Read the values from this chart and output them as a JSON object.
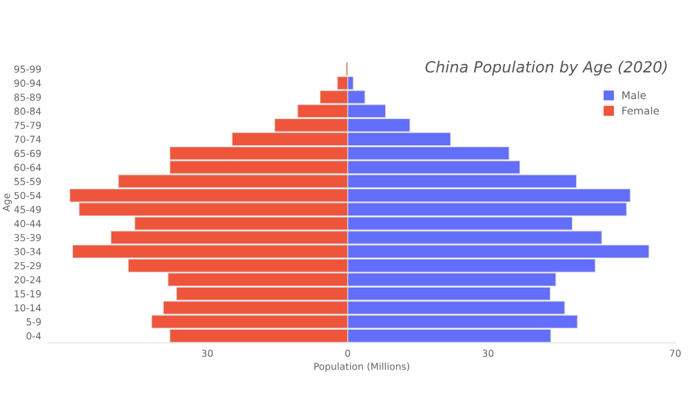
{
  "chart_data": {
    "type": "bar",
    "orientation": "horizontal",
    "title": "China Population by Age (2020)",
    "xlabel": "Population (Millions)",
    "ylabel": "Age",
    "categories": [
      "95-99",
      "90-94",
      "85-89",
      "80-84",
      "75-79",
      "70-74",
      "65-69",
      "60-64",
      "55-59",
      "50-54",
      "45-49",
      "40-44",
      "35-39",
      "30-34",
      "25-29",
      "20-24",
      "15-19",
      "10-14",
      "5-9",
      "0-4"
    ],
    "series": [
      {
        "name": "Male",
        "color": "#636efa",
        "values": [
          null,
          1.2,
          3.7,
          8.1,
          13.3,
          22,
          34.5,
          36.8,
          48.9,
          60.4,
          59.6,
          48,
          54.3,
          64.4,
          52.9,
          44.5,
          43.3,
          46.4,
          49.1,
          43.4
        ]
      },
      {
        "name": "Female",
        "color": "#ef553b",
        "values": [
          -0.3,
          -2.2,
          -5.9,
          -10.7,
          -15.6,
          -24.7,
          -38,
          -38,
          -49,
          -59.4,
          -57.4,
          -45.5,
          -50.6,
          -58.8,
          -46.9,
          -38.4,
          -36.6,
          -39.4,
          -41.9,
          -38
        ]
      }
    ],
    "xlim": [
      -64,
      70
    ],
    "stacked": true,
    "xticks": [
      {
        "value": -30,
        "label": "30"
      },
      0,
      30,
      70
    ],
    "grid": false,
    "legend": "top right"
  }
}
